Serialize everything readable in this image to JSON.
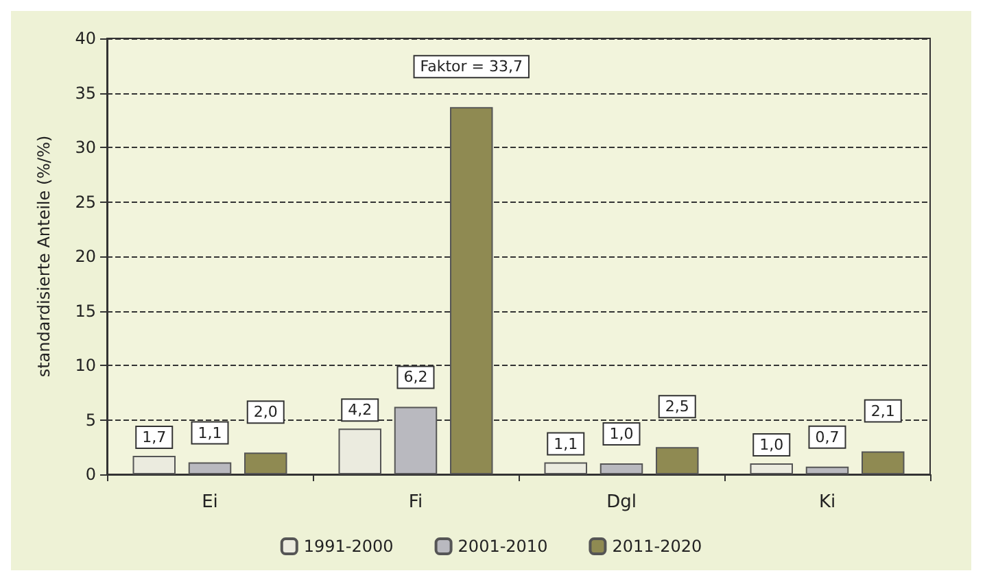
{
  "chart_data": {
    "type": "bar",
    "ylabel": "standardisierte Anteile (%/%)",
    "categories": [
      "Ei",
      "Fi",
      "Dgl",
      "Ki"
    ],
    "series": [
      {
        "name": "1991-2000",
        "color": "#ebebdf",
        "values": [
          1.7,
          4.2,
          1.1,
          1.0
        ],
        "value_labels": [
          "1,7",
          "4,2",
          "1,1",
          "1,0"
        ]
      },
      {
        "name": "2001-2010",
        "color": "#b9b9bf",
        "values": [
          1.1,
          6.2,
          1.0,
          0.7
        ],
        "value_labels": [
          "1,1",
          "6,2",
          "1,0",
          "0,7"
        ]
      },
      {
        "name": "2011-2020",
        "color": "#8f8a52",
        "values": [
          2.0,
          33.7,
          2.5,
          2.1
        ],
        "value_labels": [
          "2,0",
          "Faktor = 33,7",
          "2,5",
          "2,1"
        ]
      }
    ],
    "ylim": [
      0,
      40
    ],
    "yticks": [
      0,
      5,
      10,
      15,
      20,
      25,
      30,
      35,
      40
    ],
    "grid": "y",
    "legend": "bottom"
  }
}
